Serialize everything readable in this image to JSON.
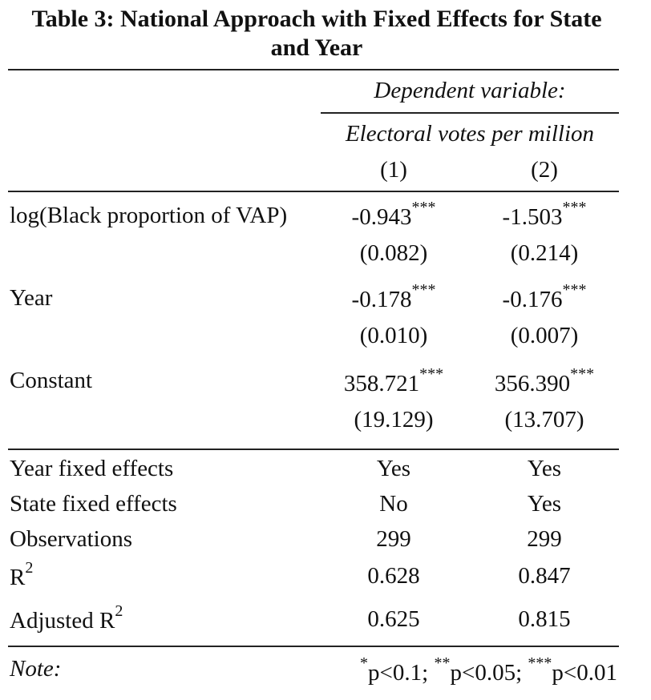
{
  "title_line1": "Table 3: National Approach with Fixed Effects for State",
  "title_line2": "and Year",
  "dependent_variable_label": "Dependent variable:",
  "dependent_variable": "Electoral votes per million",
  "columns": [
    "(1)",
    "(2)"
  ],
  "coefficients": [
    {
      "name": "log(Black proportion of VAP)",
      "estimates": [
        {
          "value": "-0.943",
          "stars": "***",
          "se": "(0.082)"
        },
        {
          "value": "-1.503",
          "stars": "***",
          "se": "(0.214)"
        }
      ]
    },
    {
      "name": "Year",
      "estimates": [
        {
          "value": "-0.178",
          "stars": "***",
          "se": "(0.010)"
        },
        {
          "value": "-0.176",
          "stars": "***",
          "se": "(0.007)"
        }
      ]
    },
    {
      "name": "Constant",
      "estimates": [
        {
          "value": "358.721",
          "stars": "***",
          "se": "(19.129)"
        },
        {
          "value": "356.390",
          "stars": "***",
          "se": "(13.707)"
        }
      ]
    }
  ],
  "stats": [
    {
      "name": "Year fixed effects",
      "values": [
        "Yes",
        "Yes"
      ]
    },
    {
      "name": "State fixed effects",
      "values": [
        "No",
        "Yes"
      ]
    },
    {
      "name": "Observations",
      "values": [
        "299",
        "299"
      ]
    },
    {
      "name": "R",
      "sup": "2",
      "values": [
        "0.628",
        "0.847"
      ]
    },
    {
      "name": "Adjusted R",
      "sup": "2",
      "values": [
        "0.625",
        "0.815"
      ]
    }
  ],
  "note": {
    "label": "Note:",
    "s1": "*",
    "t1": "p<0.1; ",
    "s2": "**",
    "t2": "p<0.05; ",
    "s3": "***",
    "t3": "p<0.01"
  }
}
